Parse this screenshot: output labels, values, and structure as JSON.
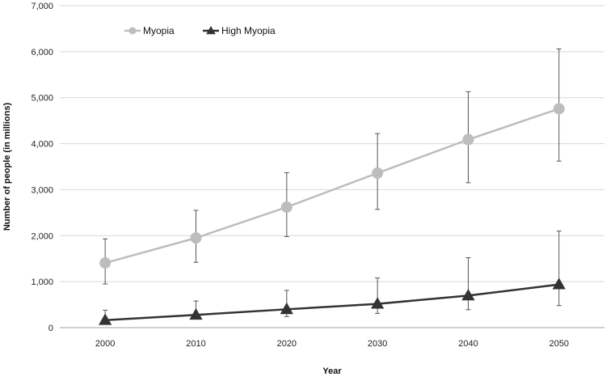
{
  "chart_data": {
    "type": "line",
    "xlabel": "Year",
    "ylabel": "Number of people (in millions)",
    "x": [
      2000,
      2010,
      2020,
      2030,
      2040,
      2050
    ],
    "xticks": [
      "2000",
      "2010",
      "2020",
      "2030",
      "2040",
      "2050"
    ],
    "ylim": [
      0,
      7000
    ],
    "yticks": [
      "0",
      "1,000",
      "2,000",
      "3,000",
      "4,000",
      "5,000",
      "6,000",
      "7,000"
    ],
    "grid": "horizontal",
    "legend": "top-left",
    "series": [
      {
        "name": "Myopia",
        "marker": "circle",
        "color": "#bdbdbd",
        "values": [
          1406,
          1950,
          2620,
          3361,
          4089,
          4758
        ],
        "err_low": [
          950,
          1420,
          1980,
          2570,
          3150,
          3620
        ],
        "err_high": [
          1930,
          2550,
          3370,
          4220,
          5130,
          6060
        ]
      },
      {
        "name": "High Myopia",
        "marker": "triangle",
        "color": "#333333",
        "values": [
          163,
          277,
          399,
          517,
          696,
          938
        ],
        "err_low": [
          120,
          200,
          240,
          310,
          390,
          480
        ],
        "err_high": [
          380,
          580,
          810,
          1080,
          1520,
          2100
        ]
      }
    ]
  }
}
